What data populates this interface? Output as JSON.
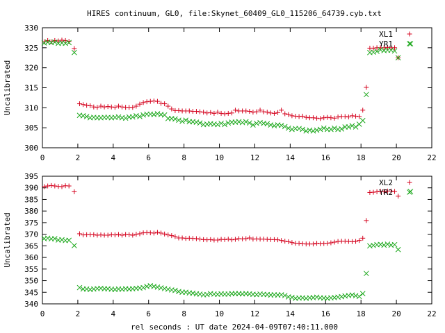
{
  "title": "HIRES continuum, GL0, file:Skynet_60409_GL0_115206_64739.cyb.txt",
  "xlabel": "rel seconds : UT date 2024-04-09T07:40:11.000",
  "colors": {
    "series_a": "#d4001c",
    "series_b": "#1ca81c"
  },
  "chart_data": [
    {
      "type": "scatter",
      "ylabel": "Uncalibrated",
      "xlim": [
        0,
        22
      ],
      "ylim": [
        300,
        330
      ],
      "xticks": [
        0,
        2,
        4,
        6,
        8,
        10,
        12,
        14,
        16,
        18,
        20,
        22
      ],
      "yticks": [
        300,
        305,
        310,
        315,
        320,
        325,
        330
      ],
      "grid": false,
      "legend": "top-right",
      "series": [
        {
          "name": "XL1",
          "marker": "+",
          "color": "#d4001c",
          "x": [
            0.1,
            0.3,
            0.5,
            0.7,
            0.9,
            1.1,
            1.3,
            1.5,
            1.8,
            2.1,
            2.3,
            2.5,
            2.7,
            2.9,
            3.1,
            3.3,
            3.5,
            3.7,
            3.9,
            4.1,
            4.3,
            4.5,
            4.7,
            4.9,
            5.1,
            5.3,
            5.5,
            5.7,
            5.9,
            6.1,
            6.3,
            6.5,
            6.7,
            6.9,
            7.1,
            7.3,
            7.5,
            7.7,
            7.9,
            8.1,
            8.3,
            8.5,
            8.7,
            8.9,
            9.1,
            9.3,
            9.5,
            9.7,
            9.9,
            10.1,
            10.3,
            10.5,
            10.7,
            10.9,
            11.1,
            11.3,
            11.5,
            11.7,
            11.9,
            12.1,
            12.3,
            12.5,
            12.7,
            12.9,
            13.1,
            13.3,
            13.5,
            13.7,
            13.9,
            14.1,
            14.3,
            14.5,
            14.7,
            14.9,
            15.1,
            15.3,
            15.5,
            15.7,
            15.9,
            16.1,
            16.3,
            16.5,
            16.7,
            16.9,
            17.1,
            17.3,
            17.5,
            17.7,
            17.9,
            18.1,
            18.3,
            18.5,
            18.7,
            18.9,
            19.1,
            19.3,
            19.5,
            19.7,
            19.9,
            20.1
          ],
          "y": [
            326.5,
            326.8,
            326.5,
            326.8,
            326.7,
            326.9,
            326.8,
            326.6,
            324.8,
            311,
            310.8,
            310.6,
            310.5,
            310.2,
            310.1,
            310.4,
            310.2,
            310.3,
            310.2,
            310.1,
            310.4,
            310.2,
            310.1,
            310.1,
            310.1,
            310.4,
            310.9,
            311.3,
            311.5,
            311.6,
            311.7,
            311.6,
            311.1,
            311,
            310.4,
            309.7,
            309.3,
            309.3,
            309.2,
            309.2,
            309.2,
            309.1,
            309.1,
            309,
            308.9,
            308.7,
            308.8,
            308.6,
            308.9,
            308.6,
            308.5,
            308.6,
            308.7,
            309.4,
            309.2,
            309.2,
            309.2,
            309.1,
            308.9,
            309,
            309.4,
            309,
            308.9,
            308.7,
            308.6,
            308.8,
            309.4,
            308.5,
            308.3,
            308,
            307.9,
            307.8,
            307.9,
            307.6,
            307.5,
            307.5,
            307.4,
            307.3,
            307.5,
            307.6,
            307.5,
            307.4,
            307.7,
            307.8,
            307.8,
            307.7,
            308,
            307.9,
            307.8,
            309.4,
            315.1,
            324.9,
            324.9,
            325,
            325,
            325,
            325.1,
            325,
            325,
            322.5
          ]
        },
        {
          "name": "YR1",
          "marker": "x",
          "color": "#1ca81c",
          "x": [
            0.1,
            0.3,
            0.5,
            0.7,
            0.9,
            1.1,
            1.3,
            1.5,
            1.8,
            2.1,
            2.3,
            2.5,
            2.7,
            2.9,
            3.1,
            3.3,
            3.5,
            3.7,
            3.9,
            4.1,
            4.3,
            4.5,
            4.7,
            4.9,
            5.1,
            5.3,
            5.5,
            5.7,
            5.9,
            6.1,
            6.3,
            6.5,
            6.7,
            6.9,
            7.1,
            7.3,
            7.5,
            7.7,
            7.9,
            8.1,
            8.3,
            8.5,
            8.7,
            8.9,
            9.1,
            9.3,
            9.5,
            9.7,
            9.9,
            10.1,
            10.3,
            10.5,
            10.7,
            10.9,
            11.1,
            11.3,
            11.5,
            11.7,
            11.9,
            12.1,
            12.3,
            12.5,
            12.7,
            12.9,
            13.1,
            13.3,
            13.5,
            13.7,
            13.9,
            14.1,
            14.3,
            14.5,
            14.7,
            14.9,
            15.1,
            15.3,
            15.5,
            15.7,
            15.9,
            16.1,
            16.3,
            16.5,
            16.7,
            16.9,
            17.1,
            17.3,
            17.5,
            17.7,
            17.9,
            18.1,
            18.3,
            18.5,
            18.7,
            18.9,
            19.1,
            19.3,
            19.5,
            19.7,
            19.9,
            20.1,
            20.8
          ],
          "y": [
            326.2,
            326.4,
            326.3,
            326.4,
            326.1,
            326.2,
            326.1,
            326.3,
            323.8,
            308.1,
            308,
            307.8,
            307.5,
            307.6,
            307.5,
            307.5,
            307.6,
            307.6,
            307.5,
            307.6,
            307.7,
            307.5,
            307.4,
            307.7,
            307.7,
            308,
            307.8,
            308.2,
            308.4,
            308.4,
            308.3,
            308.5,
            308.3,
            308.2,
            307.3,
            307.3,
            307.2,
            306.9,
            306.6,
            306.9,
            306.5,
            306.5,
            306.4,
            306.2,
            305.8,
            305.9,
            306,
            305.9,
            305.8,
            306.1,
            305.8,
            306.2,
            306.4,
            306.4,
            306.5,
            306.3,
            306.5,
            306.2,
            305.7,
            306.1,
            306.3,
            306.1,
            306,
            305.7,
            305.5,
            305.7,
            305.6,
            305.3,
            304.9,
            304.6,
            304.8,
            304.8,
            304.6,
            304.2,
            304.4,
            304.2,
            304.4,
            304.6,
            304.9,
            304.6,
            304.6,
            304.9,
            304.6,
            304.7,
            305.2,
            305.2,
            305.5,
            305.2,
            305.9,
            306.8,
            313.3,
            323.8,
            323.9,
            324.1,
            324.5,
            324.3,
            324.4,
            324.4,
            324.2,
            322.5,
            326
          ]
        }
      ]
    },
    {
      "type": "scatter",
      "ylabel": "Uncalibrated",
      "xlim": [
        0,
        22
      ],
      "ylim": [
        340,
        395
      ],
      "xticks": [
        0,
        2,
        4,
        6,
        8,
        10,
        12,
        14,
        16,
        18,
        20,
        22
      ],
      "yticks": [
        340,
        345,
        350,
        355,
        360,
        365,
        370,
        375,
        380,
        385,
        390,
        395
      ],
      "grid": false,
      "legend": "top-right",
      "series": [
        {
          "name": "XL2",
          "marker": "+",
          "color": "#d4001c",
          "x": [
            0.1,
            0.3,
            0.5,
            0.7,
            0.9,
            1.1,
            1.3,
            1.5,
            1.8,
            2.1,
            2.3,
            2.5,
            2.7,
            2.9,
            3.1,
            3.3,
            3.5,
            3.7,
            3.9,
            4.1,
            4.3,
            4.5,
            4.7,
            4.9,
            5.1,
            5.3,
            5.5,
            5.7,
            5.9,
            6.1,
            6.3,
            6.5,
            6.7,
            6.9,
            7.1,
            7.3,
            7.5,
            7.7,
            7.9,
            8.1,
            8.3,
            8.5,
            8.7,
            8.9,
            9.1,
            9.3,
            9.5,
            9.7,
            9.9,
            10.1,
            10.3,
            10.5,
            10.7,
            10.9,
            11.1,
            11.3,
            11.5,
            11.7,
            11.9,
            12.1,
            12.3,
            12.5,
            12.7,
            12.9,
            13.1,
            13.3,
            13.5,
            13.7,
            13.9,
            14.1,
            14.3,
            14.5,
            14.7,
            14.9,
            15.1,
            15.3,
            15.5,
            15.7,
            15.9,
            16.1,
            16.3,
            16.5,
            16.7,
            16.9,
            17.1,
            17.3,
            17.5,
            17.7,
            17.9,
            18.1,
            18.3,
            18.5,
            18.7,
            18.9,
            19.1,
            19.3,
            19.5,
            19.7,
            19.9,
            20.1
          ],
          "y": [
            390.5,
            390.8,
            391,
            390.8,
            390.6,
            390.5,
            390.9,
            390.8,
            388.3,
            370.2,
            369.7,
            369.8,
            369.8,
            369.8,
            369.6,
            369.7,
            369.6,
            369.6,
            369.8,
            369.7,
            369.9,
            369.6,
            369.9,
            369.8,
            369.6,
            370,
            370.2,
            370.6,
            370.7,
            370.6,
            370.5,
            370.8,
            370.5,
            370.1,
            369.7,
            369.4,
            369,
            368.4,
            368.4,
            368.2,
            368.3,
            368.2,
            368.1,
            367.9,
            367.7,
            367.6,
            367.7,
            367.5,
            367.5,
            367.8,
            367.7,
            367.9,
            367.6,
            367.8,
            368.1,
            368,
            368.1,
            368.4,
            367.9,
            368,
            367.9,
            367.9,
            367.8,
            367.7,
            367.7,
            367.6,
            367.3,
            367,
            366.8,
            366.4,
            366.1,
            366.1,
            365.9,
            365.8,
            365.8,
            365.8,
            366.1,
            365.9,
            366,
            366.1,
            366.3,
            366.6,
            366.9,
            367,
            367,
            366.9,
            366.8,
            366.9,
            367.3,
            368.3,
            375.9,
            388,
            388.1,
            388.3,
            388.5,
            388.4,
            388.6,
            388.6,
            388.4,
            386.4
          ]
        },
        {
          "name": "YR2",
          "marker": "x",
          "color": "#1ca81c",
          "x": [
            0.1,
            0.3,
            0.5,
            0.7,
            0.9,
            1.1,
            1.3,
            1.5,
            1.8,
            2.1,
            2.3,
            2.5,
            2.7,
            2.9,
            3.1,
            3.3,
            3.5,
            3.7,
            3.9,
            4.1,
            4.3,
            4.5,
            4.7,
            4.9,
            5.1,
            5.3,
            5.5,
            5.7,
            5.9,
            6.1,
            6.3,
            6.5,
            6.7,
            6.9,
            7.1,
            7.3,
            7.5,
            7.7,
            7.9,
            8.1,
            8.3,
            8.5,
            8.7,
            8.9,
            9.1,
            9.3,
            9.5,
            9.7,
            9.9,
            10.1,
            10.3,
            10.5,
            10.7,
            10.9,
            11.1,
            11.3,
            11.5,
            11.7,
            11.9,
            12.1,
            12.3,
            12.5,
            12.7,
            12.9,
            13.1,
            13.3,
            13.5,
            13.7,
            13.9,
            14.1,
            14.3,
            14.5,
            14.7,
            14.9,
            15.1,
            15.3,
            15.5,
            15.7,
            15.9,
            16.1,
            16.3,
            16.5,
            16.7,
            16.9,
            17.1,
            17.3,
            17.5,
            17.7,
            17.9,
            18.1,
            18.3,
            18.5,
            18.7,
            18.9,
            19.1,
            19.3,
            19.5,
            19.7,
            19.9,
            20.1,
            20.8
          ],
          "y": [
            368.1,
            368.3,
            368,
            368.1,
            367.5,
            367.6,
            367.3,
            367.4,
            365.1,
            347,
            346.4,
            346.4,
            346.2,
            346.4,
            346.6,
            346.7,
            346.5,
            346.5,
            346.3,
            346.2,
            346.4,
            346.3,
            346.5,
            346.4,
            346.5,
            346.7,
            346.8,
            347,
            347.5,
            347.8,
            347.5,
            347.2,
            346.9,
            346.6,
            346.3,
            346,
            345.8,
            345.3,
            345,
            345,
            344.7,
            344.6,
            344.3,
            344.2,
            343.9,
            344,
            344.4,
            344.2,
            344.1,
            344.3,
            344.2,
            344.2,
            344.4,
            344.4,
            344.4,
            344.3,
            344.4,
            344.3,
            344.1,
            344,
            344.2,
            344.1,
            344,
            343.8,
            343.9,
            343.8,
            343.9,
            343.6,
            343,
            342.8,
            342.4,
            342.5,
            342.6,
            342.4,
            342.6,
            342.7,
            342.9,
            342.6,
            342.5,
            342.4,
            342.6,
            342.7,
            342.9,
            343.1,
            343.4,
            343.6,
            343.8,
            343.5,
            343.2,
            344.4,
            353.1,
            365,
            365.2,
            365.5,
            365.6,
            365.3,
            365.7,
            365.3,
            365.5,
            363.4,
            388.4
          ]
        }
      ]
    }
  ]
}
